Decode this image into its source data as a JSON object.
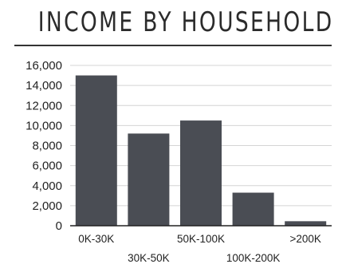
{
  "title": "INCOME BY HOUSEHOLD",
  "chart_data": {
    "type": "bar",
    "title": "INCOME BY HOUSEHOLD",
    "xlabel": "",
    "ylabel": "",
    "categories": [
      "0K-30K",
      "30K-50K",
      "50K-100K",
      "100K-200K",
      ">200K"
    ],
    "values": [
      15000,
      9200,
      10500,
      3300,
      450
    ],
    "ylim": [
      0,
      16000
    ],
    "yticks": [
      "0",
      "2,000",
      "4,000",
      "6,000",
      "8,000",
      "10,000",
      "12,000",
      "14,000",
      "16,000"
    ],
    "grid": true,
    "bar_color": "#4a4d54"
  }
}
